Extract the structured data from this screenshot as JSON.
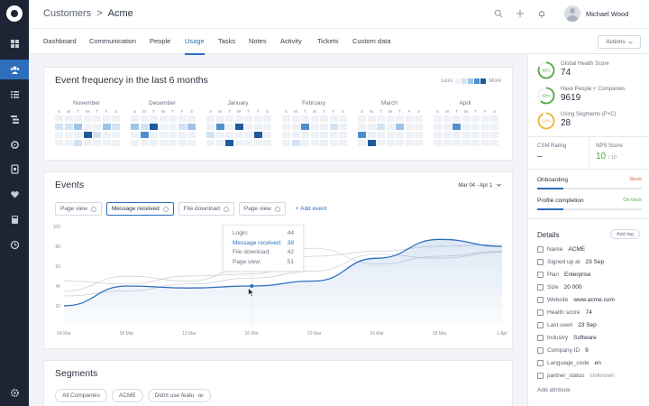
{
  "nav": {
    "items": [
      {
        "icon": "dashboard-icon"
      },
      {
        "icon": "customers-icon",
        "active": true
      },
      {
        "icon": "list-icon"
      },
      {
        "icon": "hierarchy-icon"
      },
      {
        "icon": "refresh-icon"
      },
      {
        "icon": "document-icon"
      },
      {
        "icon": "heart-icon"
      },
      {
        "icon": "calculator-icon"
      },
      {
        "icon": "clock-icon"
      },
      {
        "icon": "settings-icon"
      }
    ]
  },
  "header": {
    "breadcrumb_root": "Customers",
    "breadcrumb_sep": ">",
    "breadcrumb_current": "Acme",
    "user_name": "Michael Wood"
  },
  "tabs": [
    "Dashboard",
    "Communication",
    "People",
    "Usage",
    "Tasks",
    "Notes",
    "Activity",
    "Tickets",
    "Custom data"
  ],
  "active_tab": "Usage",
  "actions_label": "Actions",
  "heatmap": {
    "title": "Event frequency in the last 6 months",
    "legend_less": "Less",
    "legend_more": "More",
    "legend_colors": [
      "#eef2f7",
      "#d3e3f3",
      "#9fc3e6",
      "#4f8fcf",
      "#1f5a9e"
    ],
    "weekdays": [
      "S",
      "M",
      "T",
      "W",
      "T",
      "F",
      "S"
    ],
    "months": [
      {
        "name": "November",
        "levels": [
          [
            0,
            0,
            0,
            0,
            0,
            0,
            0
          ],
          [
            1,
            1,
            2,
            0,
            0,
            2,
            1
          ],
          [
            0,
            0,
            0,
            4,
            1,
            0,
            0
          ],
          [
            0,
            0,
            1,
            0,
            0,
            0,
            0
          ]
        ]
      },
      {
        "name": "December",
        "levels": [
          [
            0,
            0,
            0,
            0,
            0,
            0,
            0
          ],
          [
            2,
            1,
            4,
            0,
            0,
            1,
            2
          ],
          [
            0,
            3,
            0,
            0,
            0,
            0,
            0
          ],
          [
            0,
            0,
            0,
            0,
            0,
            0,
            0
          ]
        ]
      },
      {
        "name": "January",
        "levels": [
          [
            0,
            0,
            0,
            0,
            0,
            0,
            0
          ],
          [
            0,
            3,
            0,
            4,
            0,
            0,
            0
          ],
          [
            1,
            0,
            0,
            0,
            0,
            4,
            0
          ],
          [
            0,
            0,
            4,
            0,
            0,
            0,
            0
          ]
        ]
      },
      {
        "name": "February",
        "levels": [
          [
            0,
            0,
            0,
            0,
            0,
            0,
            0
          ],
          [
            0,
            0,
            3,
            0,
            0,
            1,
            0
          ],
          [
            0,
            0,
            0,
            0,
            0,
            0,
            0
          ],
          [
            0,
            1,
            0,
            0,
            0,
            0,
            0
          ]
        ]
      },
      {
        "name": "March",
        "levels": [
          [
            0,
            0,
            0,
            0,
            0,
            0,
            0
          ],
          [
            0,
            0,
            1,
            0,
            2,
            0,
            0
          ],
          [
            3,
            0,
            0,
            0,
            0,
            0,
            0
          ],
          [
            0,
            4,
            0,
            0,
            0,
            0,
            0
          ]
        ]
      },
      {
        "name": "April",
        "levels": [
          [
            0,
            0,
            0,
            0,
            0,
            0,
            0
          ],
          [
            0,
            0,
            3,
            0,
            0,
            0,
            0
          ],
          [
            0,
            0,
            0,
            0,
            0,
            0,
            0
          ],
          [
            0,
            0,
            0,
            0,
            0,
            0,
            0
          ]
        ]
      }
    ]
  },
  "events": {
    "title": "Events",
    "chips": [
      {
        "label": "Page view",
        "selected": false
      },
      {
        "label": "Message received",
        "selected": true
      },
      {
        "label": "File download",
        "selected": false
      },
      {
        "label": "Page view",
        "selected": false
      }
    ],
    "add_event": "+ Add event",
    "date_range": "Mar 04 - Apr 1",
    "tooltip": [
      {
        "label": "Login:",
        "value": "44",
        "highlight": false
      },
      {
        "label": "Message received:",
        "value": "38",
        "highlight": true
      },
      {
        "label": "File download:",
        "value": "42",
        "highlight": false
      },
      {
        "label": "Page view:",
        "value": "51",
        "highlight": false
      }
    ]
  },
  "chart_data": {
    "type": "line",
    "x": [
      "04 Mar",
      "08 Mar",
      "12 Mar",
      "16 Mar",
      "20 Mar",
      "24 Mar",
      "28 Mar",
      "1 Apr"
    ],
    "yticks": [
      "100",
      "80",
      "60",
      "40",
      "20"
    ],
    "ylim": [
      0,
      100
    ],
    "series": [
      {
        "values": [
          20,
          40,
          38,
          40,
          45,
          68,
          87,
          80
        ],
        "color": "#2d6ebd"
      },
      {
        "values": [
          45,
          42,
          50,
          52,
          70,
          75,
          80,
          82
        ],
        "color": "#c9cfd8"
      },
      {
        "values": [
          35,
          50,
          45,
          60,
          78,
          62,
          70,
          75
        ],
        "color": "#c9cfd8"
      },
      {
        "values": [
          30,
          35,
          42,
          48,
          55,
          72,
          68,
          74
        ],
        "color": "#c9cfd8"
      }
    ]
  },
  "segments": {
    "title": "Segments",
    "chips": [
      {
        "label": "All Companies",
        "eye": false
      },
      {
        "label": "ACME",
        "eye": false
      },
      {
        "label": "Didnt use featu",
        "eye": true
      }
    ]
  },
  "sidebar": {
    "scores": [
      {
        "percent_label": "82%",
        "fraction": 0.82,
        "color": "#4caa3c",
        "label": "Global Health Score",
        "value": "74"
      },
      {
        "percent_label": "62%",
        "fraction": 0.62,
        "color": "#4caa3c",
        "label": "Have People + Companies",
        "value": "9619"
      },
      {
        "percent_label": "93%",
        "fraction": 0.93,
        "color": "#f0b429",
        "label": "Using Segments (P+C)",
        "value": "28"
      }
    ],
    "csm_label": "CSM Rating",
    "csm_value": "–",
    "nps_label": "NPS Score",
    "nps_value": "10",
    "nps_denominator": "/ 10",
    "progress": [
      {
        "label": "Onboarding",
        "status": "Stuck",
        "status_color": "#e8553f",
        "fraction": 0.25
      },
      {
        "label": "Profile completion",
        "status": "On track",
        "status_color": "#4caa3c",
        "fraction": 0.25
      }
    ],
    "details_title": "Details",
    "add_tag": "Add tag",
    "details": [
      {
        "label": "Name",
        "value": "ACME",
        "muted": false
      },
      {
        "label": "Signed up at",
        "value": "23 Sep",
        "muted": false
      },
      {
        "label": "Plan",
        "value": "Enterprise",
        "muted": false
      },
      {
        "label": "Size",
        "value": "20 000",
        "muted": false
      },
      {
        "label": "Website",
        "value": "www.acme.com",
        "muted": false
      },
      {
        "label": "Health score",
        "value": "74",
        "muted": false
      },
      {
        "label": "Last seen",
        "value": "23 Sep",
        "muted": false
      },
      {
        "label": "Industry",
        "value": "Software",
        "muted": false
      },
      {
        "label": "Company ID",
        "value": "9",
        "muted": false
      },
      {
        "label": "Language_code",
        "value": "en",
        "muted": false
      },
      {
        "label": "partner_status",
        "value": "Unknown",
        "muted": true
      }
    ],
    "add_attribute": "Add attribute"
  }
}
